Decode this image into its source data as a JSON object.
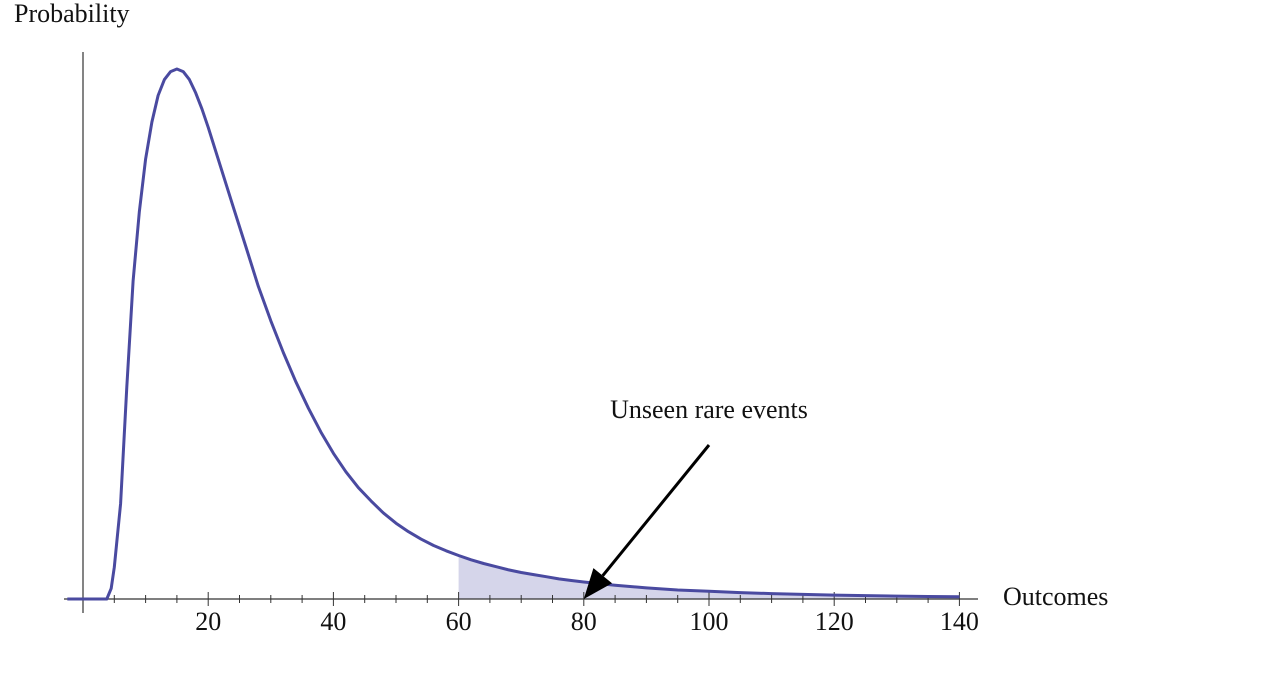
{
  "chart_data": {
    "type": "area",
    "title": "",
    "xlabel": "Outcomes",
    "ylabel": "Probability",
    "xlim": [
      -4,
      142
    ],
    "ylim": [
      0,
      1.0
    ],
    "x_ticks": [
      20,
      40,
      60,
      80,
      100,
      120,
      140
    ],
    "x_tick_labels": [
      "20",
      "40",
      "60",
      "80",
      "100",
      "120",
      "140"
    ],
    "minor_tick_step": 5,
    "grid": false,
    "legend": "none",
    "series": [
      {
        "color": "#4a4aa0",
        "x": [
          -2.5,
          0,
          2,
          3.8,
          4.5,
          5,
          6,
          7,
          8,
          9,
          10,
          11,
          12,
          13,
          14,
          15,
          16,
          17,
          18,
          19,
          20,
          22,
          24,
          26,
          28,
          30,
          32,
          34,
          36,
          38,
          40,
          42,
          44,
          46,
          48,
          50,
          52,
          54,
          56,
          58,
          60,
          62,
          64,
          66,
          68,
          70,
          72,
          74,
          76,
          78,
          80,
          85,
          90,
          95,
          100,
          105,
          110,
          115,
          120,
          125,
          130,
          135,
          140
        ],
        "y": [
          0,
          0,
          0,
          0,
          0.02,
          0.06,
          0.18,
          0.4,
          0.6,
          0.73,
          0.83,
          0.9,
          0.95,
          0.98,
          0.995,
          1.0,
          0.995,
          0.98,
          0.955,
          0.925,
          0.89,
          0.815,
          0.74,
          0.665,
          0.59,
          0.525,
          0.465,
          0.41,
          0.36,
          0.315,
          0.275,
          0.24,
          0.21,
          0.185,
          0.162,
          0.143,
          0.127,
          0.113,
          0.101,
          0.091,
          0.082,
          0.074,
          0.067,
          0.061,
          0.055,
          0.05,
          0.046,
          0.042,
          0.038,
          0.035,
          0.032,
          0.026,
          0.021,
          0.017,
          0.0145,
          0.012,
          0.0102,
          0.0086,
          0.0074,
          0.0064,
          0.0055,
          0.0048,
          0.0042
        ]
      }
    ],
    "shaded_region": {
      "x_from": 60,
      "x_to": 140,
      "color": "#d5d5ea"
    },
    "annotations": [
      {
        "text": "Unseen rare events",
        "arrow_to_x": 80,
        "arrow_to_y": 0,
        "color": "#000000"
      }
    ]
  }
}
